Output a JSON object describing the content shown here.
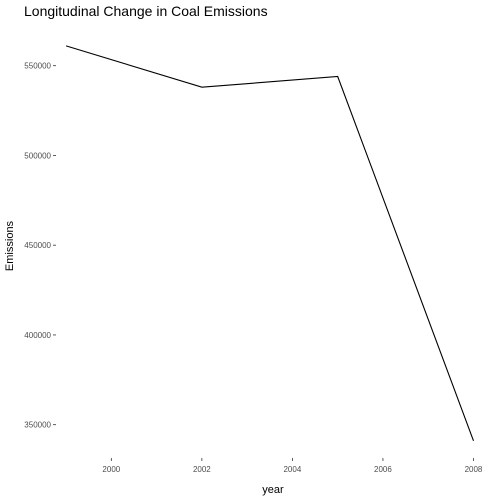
{
  "chart_data": {
    "type": "line",
    "title": "Longitudinal Change in Coal Emissions",
    "xlabel": "year",
    "ylabel": "Emissions",
    "x": [
      1999,
      2002,
      2005,
      2008
    ],
    "series": [
      {
        "values": [
          561000,
          538000,
          544000,
          341000
        ]
      }
    ],
    "xlim": [
      1998.8,
      2008.1
    ],
    "ylim": [
      332000,
      571000
    ],
    "x_ticks": [
      2000,
      2002,
      2004,
      2006,
      2008
    ],
    "x_tick_labels": [
      "2000",
      "2002",
      "2004",
      "2006",
      "2008"
    ],
    "y_ticks": [
      350000,
      400000,
      450000,
      500000,
      550000
    ],
    "y_tick_labels": [
      "350000",
      "400000",
      "450000",
      "500000",
      "550000"
    ],
    "grid": false,
    "legend": "none",
    "line_color": "#000000"
  }
}
